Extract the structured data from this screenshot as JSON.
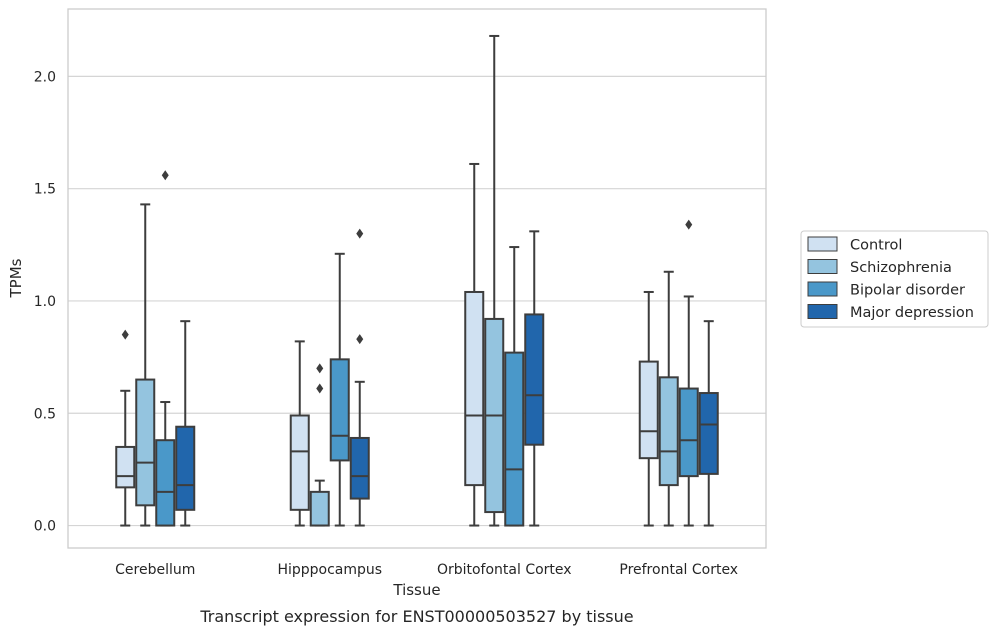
{
  "caption": "Transcript expression for ENST00000503527 by tissue",
  "chart_data": {
    "type": "box",
    "xlabel": "Tissue",
    "ylabel": "TPMs",
    "ylim": [
      -0.1,
      2.3
    ],
    "yticks": [
      "0.0",
      "0.5",
      "1.0",
      "1.5",
      "2.0"
    ],
    "grid": "horizontal",
    "legend_position": "right",
    "categories": [
      "Cerebellum",
      "Hipppocampus",
      "Orbitofontal Cortex",
      "Prefrontal Cortex"
    ],
    "series": [
      {
        "name": "Control",
        "color": "#d0e1f2",
        "boxes": [
          {
            "whislo": 0.0,
            "q1": 0.17,
            "med": 0.22,
            "q3": 0.35,
            "whishi": 0.6,
            "fliers": [
              0.85
            ]
          },
          {
            "whislo": 0.0,
            "q1": 0.07,
            "med": 0.33,
            "q3": 0.49,
            "whishi": 0.82,
            "fliers": []
          },
          {
            "whislo": 0.0,
            "q1": 0.18,
            "med": 0.49,
            "q3": 1.04,
            "whishi": 1.61,
            "fliers": []
          },
          {
            "whislo": 0.0,
            "q1": 0.3,
            "med": 0.42,
            "q3": 0.73,
            "whishi": 1.04,
            "fliers": []
          }
        ]
      },
      {
        "name": "Schizophrenia",
        "color": "#94c4df",
        "boxes": [
          {
            "whislo": 0.0,
            "q1": 0.09,
            "med": 0.28,
            "q3": 0.65,
            "whishi": 1.43,
            "fliers": []
          },
          {
            "whislo": 0.0,
            "q1": 0.0,
            "med": 0.0,
            "q3": 0.15,
            "whishi": 0.2,
            "fliers": [
              0.61,
              0.7
            ]
          },
          {
            "whislo": 0.0,
            "q1": 0.06,
            "med": 0.49,
            "q3": 0.92,
            "whishi": 2.18,
            "fliers": []
          },
          {
            "whislo": 0.0,
            "q1": 0.18,
            "med": 0.33,
            "q3": 0.66,
            "whishi": 1.13,
            "fliers": []
          }
        ]
      },
      {
        "name": "Bipolar disorder",
        "color": "#4a98c9",
        "boxes": [
          {
            "whislo": 0.0,
            "q1": 0.0,
            "med": 0.15,
            "q3": 0.38,
            "whishi": 0.55,
            "fliers": [
              1.56
            ]
          },
          {
            "whislo": 0.0,
            "q1": 0.29,
            "med": 0.4,
            "q3": 0.74,
            "whishi": 1.21,
            "fliers": []
          },
          {
            "whislo": 0.0,
            "q1": 0.0,
            "med": 0.25,
            "q3": 0.77,
            "whishi": 1.24,
            "fliers": []
          },
          {
            "whislo": 0.0,
            "q1": 0.22,
            "med": 0.38,
            "q3": 0.61,
            "whishi": 1.02,
            "fliers": [
              1.34
            ]
          }
        ]
      },
      {
        "name": "Major depression",
        "color": "#2166ac",
        "boxes": [
          {
            "whislo": 0.0,
            "q1": 0.07,
            "med": 0.18,
            "q3": 0.44,
            "whishi": 0.91,
            "fliers": []
          },
          {
            "whislo": 0.0,
            "q1": 0.12,
            "med": 0.22,
            "q3": 0.39,
            "whishi": 0.64,
            "fliers": [
              0.83,
              1.3
            ]
          },
          {
            "whislo": 0.0,
            "q1": 0.36,
            "med": 0.58,
            "q3": 0.94,
            "whishi": 1.31,
            "fliers": []
          },
          {
            "whislo": 0.0,
            "q1": 0.23,
            "med": 0.45,
            "q3": 0.59,
            "whishi": 0.91,
            "fliers": []
          }
        ]
      }
    ]
  }
}
